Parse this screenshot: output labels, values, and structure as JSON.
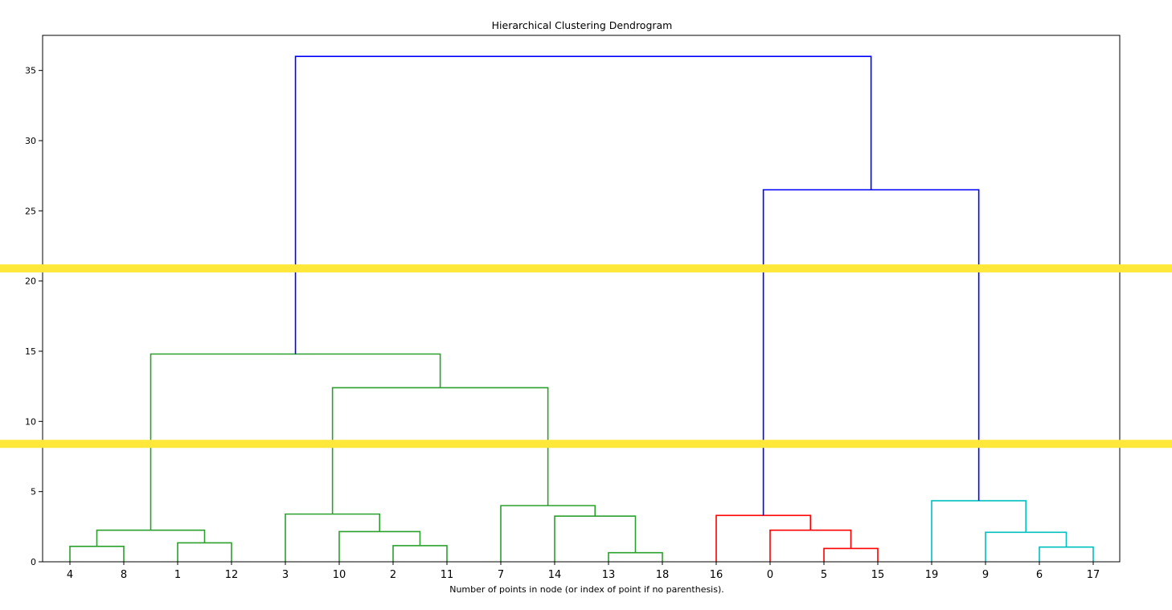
{
  "chart_data": {
    "type": "dendrogram",
    "title": "Hierarchical Clustering Dendrogram",
    "xlabel": "Number of points in node (or index of point if no parenthesis).",
    "ylabel": "",
    "ylim": [
      0,
      37.5
    ],
    "y_ticks": [
      0,
      5,
      10,
      15,
      20,
      25,
      30,
      35
    ],
    "leaves": [
      "4",
      "8",
      "1",
      "12",
      "3",
      "10",
      "2",
      "11",
      "7",
      "14",
      "13",
      "18",
      "16",
      "0",
      "5",
      "15",
      "19",
      "9",
      "6",
      "17"
    ],
    "links": [
      {
        "a": 0,
        "b": 1,
        "h": 1.1,
        "color": "#2ca02c"
      },
      {
        "a": 2,
        "b": 3,
        "h": 1.35,
        "color": "#2ca02c"
      },
      {
        "a": 0.5,
        "b": 2.5,
        "h": 2.25,
        "color": "#2ca02c"
      },
      {
        "a": 6,
        "b": 7,
        "h": 1.15,
        "color": "#2ca02c"
      },
      {
        "a": 5,
        "b": 6.5,
        "h": 2.15,
        "color": "#2ca02c"
      },
      {
        "a": 4,
        "b": 5.75,
        "h": 3.4,
        "color": "#2ca02c"
      },
      {
        "a": 10,
        "b": 11,
        "h": 0.65,
        "color": "#2ca02c"
      },
      {
        "a": 9,
        "b": 10.5,
        "h": 3.25,
        "color": "#2ca02c"
      },
      {
        "a": 8,
        "b": 9.75,
        "h": 4.0,
        "color": "#2ca02c"
      },
      {
        "a": 4.875,
        "b": 8.875,
        "h": 12.4,
        "color": "#2ca02c"
      },
      {
        "a": 1.5,
        "b": 6.875,
        "h": 14.8,
        "color": "#2ca02c"
      },
      {
        "a": 14,
        "b": 15,
        "h": 0.95,
        "color": "#ff0000"
      },
      {
        "a": 13,
        "b": 14.5,
        "h": 2.25,
        "color": "#ff0000"
      },
      {
        "a": 12,
        "b": 13.75,
        "h": 3.3,
        "color": "#ff0000"
      },
      {
        "a": 18,
        "b": 19,
        "h": 1.05,
        "color": "#00bfbf"
      },
      {
        "a": 17,
        "b": 18.5,
        "h": 2.1,
        "color": "#00bfbf"
      },
      {
        "a": 16,
        "b": 17.75,
        "h": 4.35,
        "color": "#00bfbf"
      },
      {
        "a": 12.875,
        "b": 16.875,
        "h": 26.5,
        "color": "#0000ff"
      },
      {
        "a": 4.1875,
        "b": 14.875,
        "h": 36.0,
        "color": "#0000ff"
      }
    ],
    "cut_lines": [
      20.9,
      8.4
    ],
    "cut_line_color": "#ffe83a",
    "grid": false
  }
}
